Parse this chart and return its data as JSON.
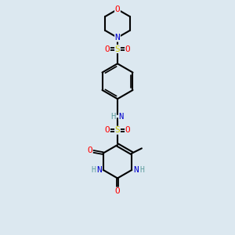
{
  "bg_color": "#dce8f0",
  "atom_colors": {
    "C": "#000000",
    "N": "#0000cc",
    "O": "#ff0000",
    "S": "#cccc00",
    "H": "#5f9ea0"
  },
  "figsize": [
    3.0,
    3.0
  ],
  "dpi": 100,
  "xlim": [
    0,
    6
  ],
  "ylim": [
    0,
    12
  ]
}
